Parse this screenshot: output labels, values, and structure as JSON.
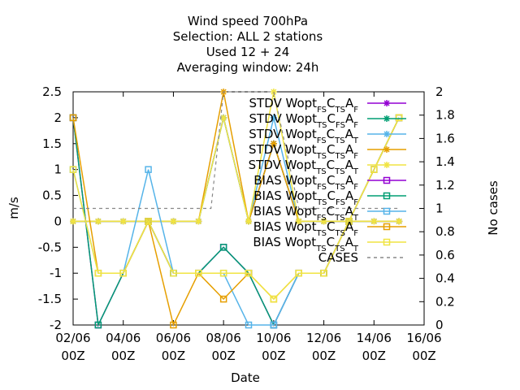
{
  "chart_data": {
    "type": "line",
    "title_lines": [
      "Wind speed 700hPa",
      "Selection: ALL      2 stations",
      "Used  12 + 24",
      "Averaging window: 24h"
    ],
    "xlabel": "Date",
    "ylabel": "m/s",
    "y2label": "No cases",
    "xlim": [
      0,
      14
    ],
    "ylim": [
      -2,
      2.5
    ],
    "y2lim": [
      0,
      2
    ],
    "x_ticks": [
      {
        "x": 0,
        "line1": "02/06",
        "line2": "00Z"
      },
      {
        "x": 2,
        "line1": "04/06",
        "line2": "00Z"
      },
      {
        "x": 4,
        "line1": "06/06",
        "line2": "00Z"
      },
      {
        "x": 6,
        "line1": "08/06",
        "line2": "00Z"
      },
      {
        "x": 8,
        "line1": "10/06",
        "line2": "00Z"
      },
      {
        "x": 10,
        "line1": "12/06",
        "line2": "00Z"
      },
      {
        "x": 12,
        "line1": "14/06",
        "line2": "00Z"
      },
      {
        "x": 14,
        "line1": "16/06",
        "line2": "00Z"
      }
    ],
    "y_ticks": [
      {
        "v": -2,
        "label": "-2"
      },
      {
        "v": -1.5,
        "label": "-1.5"
      },
      {
        "v": -1,
        "label": "-1"
      },
      {
        "v": -0.5,
        "label": "-0.5"
      },
      {
        "v": 0,
        "label": "0"
      },
      {
        "v": 0.5,
        "label": "0.5"
      },
      {
        "v": 1,
        "label": "1"
      },
      {
        "v": 1.5,
        "label": "1.5"
      },
      {
        "v": 2,
        "label": "2"
      },
      {
        "v": 2.5,
        "label": "2.5"
      }
    ],
    "y2_ticks": [
      {
        "v": 0,
        "label": "0"
      },
      {
        "v": 0.2,
        "label": "0.2"
      },
      {
        "v": 0.4,
        "label": "0.4"
      },
      {
        "v": 0.6,
        "label": "0.6"
      },
      {
        "v": 0.8,
        "label": "0.8"
      },
      {
        "v": 1,
        "label": "1"
      },
      {
        "v": 1.2,
        "label": "1.2"
      },
      {
        "v": 1.4,
        "label": "1.4"
      },
      {
        "v": 1.6,
        "label": "1.6"
      },
      {
        "v": 1.8,
        "label": "1.8"
      },
      {
        "v": 2,
        "label": "2"
      }
    ],
    "series": [
      {
        "id": "stdv1",
        "legend": [
          [
            "STDV Wopt",
            ""
          ],
          [
            "FS",
            "sub"
          ],
          [
            "C",
            ""
          ],
          [
            "TS",
            "sub"
          ],
          [
            "A",
            ""
          ],
          [
            "F",
            "sub"
          ]
        ],
        "color": "#9400d3",
        "marker": "star",
        "dash": false,
        "axis": "y",
        "x": [
          0,
          1,
          2,
          3,
          4,
          5,
          6,
          7,
          8,
          9,
          10,
          11,
          12,
          13
        ],
        "y": [
          0,
          0,
          0,
          0,
          0,
          0,
          2,
          0,
          1.5,
          0,
          0,
          0,
          0,
          0
        ]
      },
      {
        "id": "stdv2",
        "legend": [
          [
            "STDV Wopt",
            ""
          ],
          [
            "TS",
            "sub"
          ],
          [
            "C",
            ""
          ],
          [
            "FS",
            "sub"
          ],
          [
            "A",
            ""
          ],
          [
            "F",
            "sub"
          ]
        ],
        "color": "#009e73",
        "marker": "star",
        "dash": false,
        "axis": "y",
        "x": [
          0,
          1,
          2,
          3,
          4,
          5,
          6,
          7,
          8,
          9,
          10,
          11,
          12,
          13
        ],
        "y": [
          0,
          0,
          0,
          0,
          0,
          0,
          2,
          0,
          1.5,
          0,
          0,
          0,
          0,
          0
        ]
      },
      {
        "id": "stdv3",
        "legend": [
          [
            "STDV Wopt",
            ""
          ],
          [
            "FS",
            "sub"
          ],
          [
            "C",
            ""
          ],
          [
            "TS",
            "sub"
          ],
          [
            "A",
            ""
          ],
          [
            "T",
            "sub"
          ]
        ],
        "color": "#56b4e9",
        "marker": "star",
        "dash": false,
        "axis": "y",
        "x": [
          0,
          1,
          2,
          3,
          4,
          5,
          6,
          7,
          8,
          9,
          10,
          11,
          12,
          13
        ],
        "y": [
          0,
          0,
          0,
          0,
          0,
          0,
          2,
          0,
          2,
          0,
          0,
          0,
          0,
          0
        ]
      },
      {
        "id": "stdv4",
        "legend": [
          [
            "STDV Wopt",
            ""
          ],
          [
            "TS",
            "sub"
          ],
          [
            "C",
            ""
          ],
          [
            "TS",
            "sub"
          ],
          [
            "A",
            ""
          ],
          [
            "F",
            "sub"
          ]
        ],
        "color": "#e69f00",
        "marker": "star",
        "dash": false,
        "axis": "y",
        "x": [
          0,
          1,
          2,
          3,
          4,
          5,
          6,
          7,
          8,
          9,
          10,
          11,
          12,
          13
        ],
        "y": [
          0,
          0,
          0,
          0,
          0,
          0,
          2.5,
          0,
          1.5,
          0,
          0,
          0,
          0,
          0
        ]
      },
      {
        "id": "stdv5",
        "legend": [
          [
            "STDV Wopt",
            ""
          ],
          [
            "TS",
            "sub"
          ],
          [
            "C",
            ""
          ],
          [
            "TS",
            "sub"
          ],
          [
            "A",
            ""
          ],
          [
            "T",
            "sub"
          ]
        ],
        "color": "#f0e442",
        "marker": "star",
        "dash": false,
        "axis": "y",
        "x": [
          0,
          1,
          2,
          3,
          4,
          5,
          6,
          7,
          8,
          9,
          10,
          11,
          12,
          13
        ],
        "y": [
          0,
          0,
          0,
          0,
          0,
          0,
          2,
          0,
          2.5,
          0,
          0,
          0,
          0,
          0
        ]
      },
      {
        "id": "bias1",
        "legend": [
          [
            "BIAS Wopt",
            ""
          ],
          [
            "FS",
            "sub"
          ],
          [
            "C",
            ""
          ],
          [
            "TS",
            "sub"
          ],
          [
            "A",
            ""
          ],
          [
            "F",
            "sub"
          ]
        ],
        "color": "#9400d3",
        "marker": "square",
        "dash": false,
        "axis": "y",
        "x": [
          0,
          1,
          2,
          3,
          4,
          5,
          6,
          7,
          8,
          9,
          10,
          11,
          12,
          13
        ],
        "y": [
          2,
          -2,
          -1,
          0,
          -1,
          -1,
          -0.5,
          -1,
          -2,
          -1,
          -1,
          0,
          1,
          2
        ]
      },
      {
        "id": "bias2",
        "legend": [
          [
            "BIAS Wopt",
            ""
          ],
          [
            "TS",
            "sub"
          ],
          [
            "C",
            ""
          ],
          [
            "FS",
            "sub"
          ],
          [
            "A",
            ""
          ],
          [
            "F",
            "sub"
          ]
        ],
        "color": "#009e73",
        "marker": "square",
        "dash": false,
        "axis": "y",
        "x": [
          0,
          1,
          2,
          3,
          4,
          5,
          6,
          7,
          8,
          9,
          10,
          11,
          12,
          13
        ],
        "y": [
          2,
          -2,
          -1,
          0,
          -1,
          -1,
          -0.5,
          -1,
          -2,
          -1,
          -1,
          0,
          1,
          2
        ]
      },
      {
        "id": "bias3",
        "legend": [
          [
            "BIAS Wopt",
            ""
          ],
          [
            "FS",
            "sub"
          ],
          [
            "C",
            ""
          ],
          [
            "TS",
            "sub"
          ],
          [
            "A",
            ""
          ],
          [
            "T",
            "sub"
          ]
        ],
        "color": "#56b4e9",
        "marker": "square",
        "dash": false,
        "axis": "y",
        "x": [
          0,
          1,
          2,
          3,
          4,
          5,
          6,
          7,
          8,
          9,
          10,
          11,
          12,
          13
        ],
        "y": [
          1,
          -1,
          -1,
          1,
          -1,
          -1,
          -1,
          -2,
          -2,
          -1,
          -1,
          0,
          1,
          2
        ]
      },
      {
        "id": "bias4",
        "legend": [
          [
            "BIAS Wopt",
            ""
          ],
          [
            "TS",
            "sub"
          ],
          [
            "C",
            ""
          ],
          [
            "TS",
            "sub"
          ],
          [
            "A",
            ""
          ],
          [
            "F",
            "sub"
          ]
        ],
        "color": "#e69f00",
        "marker": "square",
        "dash": false,
        "axis": "y",
        "x": [
          0,
          1,
          2,
          3,
          4,
          5,
          6,
          7,
          8,
          9,
          10,
          11,
          12,
          13
        ],
        "y": [
          2,
          -1,
          -1,
          0,
          -2,
          -1,
          -1.5,
          -1,
          -1.5,
          -1,
          -1,
          0,
          1,
          2
        ]
      },
      {
        "id": "bias5",
        "legend": [
          [
            "BIAS Wopt",
            ""
          ],
          [
            "TS",
            "sub"
          ],
          [
            "C",
            ""
          ],
          [
            "TS",
            "sub"
          ],
          [
            "A",
            ""
          ],
          [
            "T",
            "sub"
          ]
        ],
        "color": "#f0e442",
        "marker": "square",
        "dash": false,
        "axis": "y",
        "x": [
          0,
          1,
          2,
          3,
          4,
          5,
          6,
          7,
          8,
          9,
          10,
          11,
          12,
          13
        ],
        "y": [
          1,
          -1,
          -1,
          0,
          -1,
          -1,
          -1,
          -1,
          -1.5,
          -1,
          -1,
          0,
          1,
          2
        ]
      },
      {
        "id": "cases",
        "legend": [
          [
            "CASES",
            ""
          ]
        ],
        "color": "#888888",
        "marker": "none",
        "dash": true,
        "axis": "y2",
        "x": [
          0,
          1,
          2,
          3,
          4,
          5,
          5.5,
          6,
          7,
          8,
          9,
          10,
          11,
          12,
          13
        ],
        "y": [
          1,
          1,
          1,
          1,
          1,
          1,
          1,
          2,
          2,
          2,
          1,
          1,
          1,
          1,
          1
        ]
      }
    ]
  }
}
